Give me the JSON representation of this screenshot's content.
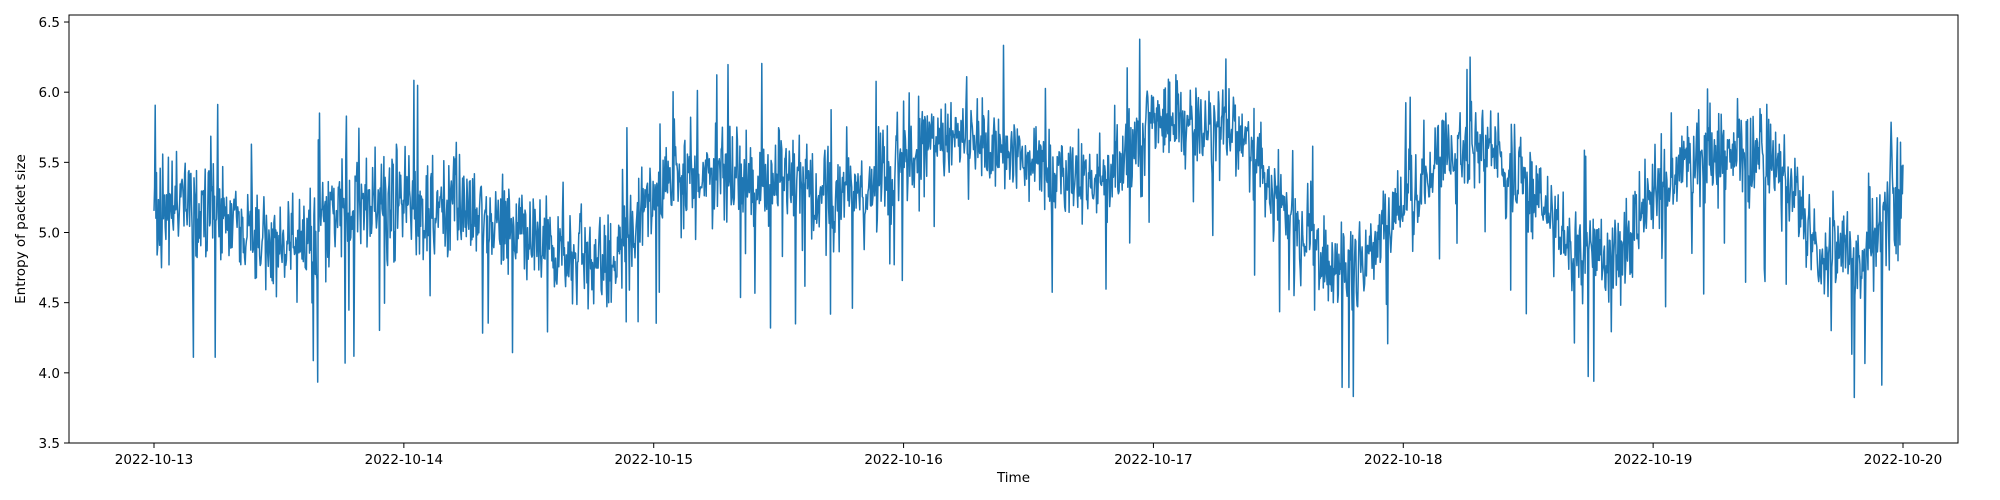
{
  "chart_data": {
    "type": "line",
    "title": "",
    "xlabel": "Time",
    "ylabel": "Entropy of packet size",
    "x_range": [
      "2022-10-13",
      "2022-10-20"
    ],
    "x_ticks": [
      "2022-10-13",
      "2022-10-14",
      "2022-10-15",
      "2022-10-16",
      "2022-10-17",
      "2022-10-18",
      "2022-10-19",
      "2022-10-20"
    ],
    "x_tick_labels": [
      "2022-10-13",
      "2022-10-14",
      "2022-10-15",
      "2022-10-16",
      "2022-10-17",
      "2022-10-18",
      "2022-10-19",
      "2022-10-20"
    ],
    "y_ticks": [
      3.5,
      4.0,
      4.5,
      5.0,
      5.5,
      6.0,
      6.5
    ],
    "y_tick_labels": [
      "3.5",
      "4.0",
      "4.5",
      "5.0",
      "5.5",
      "6.0",
      "6.5"
    ],
    "ylim": [
      3.5,
      6.55
    ],
    "grid": false,
    "line_color": "#1f77b4",
    "series": [
      {
        "x": [
          "2022-10-13 00:00",
          "2022-10-13 04:00",
          "2022-10-13 08:00",
          "2022-10-13 12:00",
          "2022-10-13 16:00",
          "2022-10-13 20:00",
          "2022-10-14 00:00",
          "2022-10-14 04:00",
          "2022-10-14 08:00",
          "2022-10-14 12:00",
          "2022-10-14 16:00",
          "2022-10-14 20:00",
          "2022-10-15 00:00",
          "2022-10-15 04:00",
          "2022-10-15 08:00",
          "2022-10-15 12:00",
          "2022-10-15 16:00",
          "2022-10-15 20:00",
          "2022-10-16 00:00",
          "2022-10-16 04:00",
          "2022-10-16 08:00",
          "2022-10-16 12:00",
          "2022-10-16 16:00",
          "2022-10-16 20:00",
          "2022-10-17 00:00",
          "2022-10-17 04:00",
          "2022-10-17 08:00",
          "2022-10-17 12:00",
          "2022-10-17 16:00",
          "2022-10-17 20:00",
          "2022-10-18 00:00",
          "2022-10-18 04:00",
          "2022-10-18 08:00",
          "2022-10-18 12:00",
          "2022-10-18 16:00",
          "2022-10-18 20:00",
          "2022-10-19 00:00",
          "2022-10-19 04:00",
          "2022-10-19 08:00",
          "2022-10-19 12:00",
          "2022-10-19 16:00",
          "2022-10-19 20:00",
          "2022-10-20 00:00"
        ],
        "center": [
          5.15,
          5.2,
          5.05,
          4.9,
          5.0,
          5.2,
          5.25,
          5.2,
          5.1,
          5.0,
          4.85,
          4.75,
          5.3,
          5.4,
          5.45,
          5.35,
          5.3,
          5.25,
          5.55,
          5.7,
          5.65,
          5.5,
          5.4,
          5.35,
          5.75,
          5.8,
          5.7,
          5.25,
          4.8,
          4.75,
          5.2,
          5.55,
          5.6,
          5.35,
          4.9,
          4.8,
          5.25,
          5.5,
          5.6,
          5.5,
          4.85,
          4.75,
          5.35
        ],
        "spread": [
          0.35,
          0.35,
          0.3,
          0.35,
          0.35,
          0.35,
          0.35,
          0.35,
          0.3,
          0.3,
          0.3,
          0.35,
          0.35,
          0.3,
          0.3,
          0.35,
          0.35,
          0.3,
          0.3,
          0.3,
          0.3,
          0.3,
          0.3,
          0.3,
          0.3,
          0.3,
          0.3,
          0.3,
          0.3,
          0.3,
          0.3,
          0.3,
          0.3,
          0.3,
          0.3,
          0.3,
          0.3,
          0.3,
          0.3,
          0.3,
          0.3,
          0.3,
          0.45
        ]
      }
    ]
  }
}
